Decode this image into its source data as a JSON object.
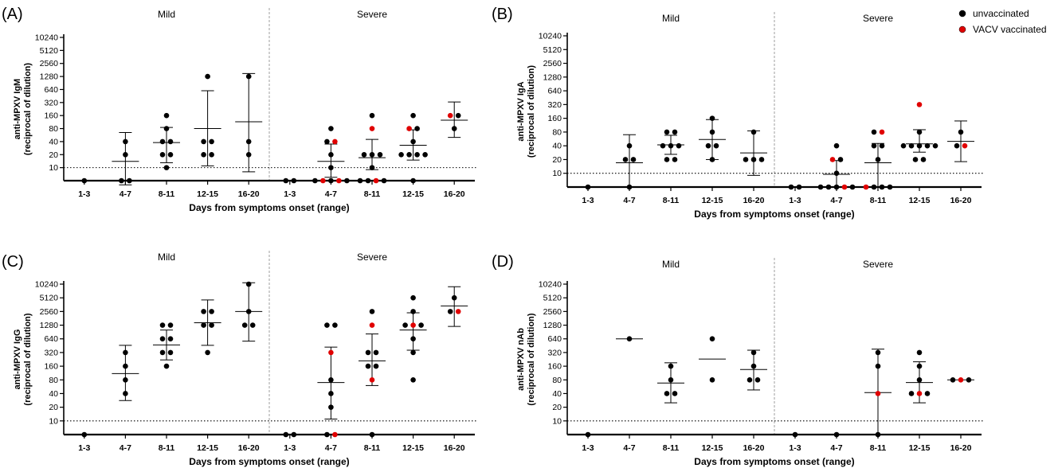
{
  "legend": {
    "items": [
      {
        "label": "unvaccinated",
        "color": "#000000"
      },
      {
        "label": "VACV vaccinated",
        "color": "#e00000"
      }
    ],
    "placement": "top-right"
  },
  "chart_data": [
    {
      "type": "scatter",
      "panel": "(A)",
      "groups": [
        "Mild",
        "Severe"
      ],
      "categories": [
        "1-3",
        "4-7",
        "8-11",
        "12-15",
        "16-20",
        "1-3",
        "4-7",
        "8-11",
        "12-15",
        "16-20"
      ],
      "xlabel": "Days from symptoms onset (range)",
      "ylabel": [
        "anti-MPXV IgM",
        "(reciprocal of dilution)"
      ],
      "yticks": [
        10,
        20,
        40,
        80,
        160,
        320,
        640,
        1280,
        2560,
        5120,
        10240
      ],
      "yscale": "log2",
      "ylim": [
        5,
        10240
      ],
      "threshold": 10,
      "points": [
        [
          [
            5,
            "u"
          ]
        ],
        [
          [
            5,
            "u"
          ],
          [
            5,
            "u"
          ],
          [
            20,
            "u"
          ],
          [
            40,
            "u"
          ]
        ],
        [
          [
            10,
            "u"
          ],
          [
            20,
            "u"
          ],
          [
            20,
            "u"
          ],
          [
            40,
            "u"
          ],
          [
            40,
            "u"
          ],
          [
            80,
            "u"
          ],
          [
            160,
            "u"
          ]
        ],
        [
          [
            20,
            "u"
          ],
          [
            20,
            "u"
          ],
          [
            40,
            "u"
          ],
          [
            40,
            "u"
          ],
          [
            1280,
            "u"
          ]
        ],
        [
          [
            20,
            "u"
          ],
          [
            40,
            "u"
          ],
          [
            1280,
            "u"
          ]
        ],
        [
          [
            5,
            "u"
          ],
          [
            5,
            "u"
          ]
        ],
        [
          [
            5,
            "u"
          ],
          [
            5,
            "v"
          ],
          [
            5,
            "u"
          ],
          [
            5,
            "v"
          ],
          [
            5,
            "u"
          ],
          [
            10,
            "u"
          ],
          [
            20,
            "u"
          ],
          [
            40,
            "u"
          ],
          [
            40,
            "v"
          ],
          [
            80,
            "u"
          ]
        ],
        [
          [
            5,
            "u"
          ],
          [
            5,
            "u"
          ],
          [
            5,
            "v"
          ],
          [
            5,
            "u"
          ],
          [
            10,
            "u"
          ],
          [
            20,
            "u"
          ],
          [
            20,
            "u"
          ],
          [
            20,
            "u"
          ],
          [
            80,
            "v"
          ],
          [
            160,
            "u"
          ]
        ],
        [
          [
            5,
            "u"
          ],
          [
            20,
            "u"
          ],
          [
            20,
            "u"
          ],
          [
            20,
            "u"
          ],
          [
            20,
            "u"
          ],
          [
            40,
            "u"
          ],
          [
            80,
            "v"
          ],
          [
            80,
            "u"
          ],
          [
            160,
            "u"
          ]
        ],
        [
          [
            80,
            "u"
          ],
          [
            160,
            "v"
          ],
          [
            160,
            "u"
          ]
        ]
      ],
      "center": [
        null,
        14,
        38,
        80,
        115,
        null,
        14,
        17,
        33,
        125
      ],
      "err_low": [
        null,
        4,
        13,
        11,
        8,
        null,
        6,
        9,
        15,
        50
      ],
      "err_high": [
        null,
        65,
        85,
        600,
        1500,
        null,
        35,
        45,
        75,
        330
      ]
    },
    {
      "type": "scatter",
      "panel": "(B)",
      "groups": [
        "Mild",
        "Severe"
      ],
      "categories": [
        "1-3",
        "4-7",
        "8-11",
        "12-15",
        "16-20",
        "1-3",
        "4-7",
        "8-11",
        "12-15",
        "16-20"
      ],
      "xlabel": "Days from symptoms onset (range)",
      "ylabel": [
        "anti-MPXV IgA",
        "(reciprocal of dilution)"
      ],
      "yticks": [
        10,
        20,
        40,
        80,
        160,
        320,
        640,
        1280,
        2560,
        5120,
        10240
      ],
      "yscale": "log2",
      "ylim": [
        5,
        10240
      ],
      "threshold": 10,
      "points": [
        [
          [
            5,
            "u"
          ]
        ],
        [
          [
            5,
            "u"
          ],
          [
            20,
            "u"
          ],
          [
            20,
            "u"
          ],
          [
            40,
            "u"
          ]
        ],
        [
          [
            20,
            "u"
          ],
          [
            20,
            "u"
          ],
          [
            40,
            "u"
          ],
          [
            40,
            "u"
          ],
          [
            40,
            "u"
          ],
          [
            80,
            "u"
          ],
          [
            80,
            "u"
          ]
        ],
        [
          [
            20,
            "u"
          ],
          [
            40,
            "u"
          ],
          [
            40,
            "u"
          ],
          [
            80,
            "u"
          ],
          [
            160,
            "u"
          ]
        ],
        [
          [
            20,
            "u"
          ],
          [
            20,
            "u"
          ],
          [
            20,
            "u"
          ],
          [
            80,
            "u"
          ]
        ],
        [
          [
            5,
            "u"
          ],
          [
            5,
            "u"
          ]
        ],
        [
          [
            5,
            "u"
          ],
          [
            5,
            "u"
          ],
          [
            5,
            "u"
          ],
          [
            5,
            "v"
          ],
          [
            5,
            "u"
          ],
          [
            10,
            "u"
          ],
          [
            20,
            "v"
          ],
          [
            20,
            "u"
          ],
          [
            40,
            "u"
          ]
        ],
        [
          [
            5,
            "v"
          ],
          [
            5,
            "u"
          ],
          [
            5,
            "u"
          ],
          [
            5,
            "u"
          ],
          [
            20,
            "u"
          ],
          [
            40,
            "u"
          ],
          [
            40,
            "u"
          ],
          [
            80,
            "u"
          ],
          [
            80,
            "v"
          ]
        ],
        [
          [
            20,
            "u"
          ],
          [
            20,
            "u"
          ],
          [
            40,
            "u"
          ],
          [
            40,
            "u"
          ],
          [
            40,
            "u"
          ],
          [
            40,
            "u"
          ],
          [
            40,
            "u"
          ],
          [
            80,
            "u"
          ],
          [
            320,
            "v"
          ]
        ],
        [
          [
            40,
            "u"
          ],
          [
            40,
            "v"
          ],
          [
            80,
            "u"
          ]
        ]
      ],
      "center": [
        null,
        17,
        42,
        55,
        28,
        null,
        9.5,
        17,
        44,
        50
      ],
      "err_low": [
        null,
        5,
        26,
        20,
        9,
        null,
        5,
        5,
        29,
        18
      ],
      "err_high": [
        null,
        70,
        68,
        150,
        85,
        null,
        19,
        45,
        90,
        140
      ]
    },
    {
      "type": "scatter",
      "panel": "(C)",
      "groups": [
        "Mild",
        "Severe"
      ],
      "categories": [
        "1-3",
        "4-7",
        "8-11",
        "12-15",
        "16-20",
        "1-3",
        "4-7",
        "8-11",
        "12-15",
        "16-20"
      ],
      "xlabel": "Days from symptoms onset (range)",
      "ylabel": [
        "anti-MPXV IgG",
        "(reciprocal of dilution)"
      ],
      "yticks": [
        10,
        20,
        40,
        80,
        160,
        320,
        640,
        1280,
        2560,
        5120,
        10240
      ],
      "yscale": "log2",
      "ylim": [
        5,
        10240
      ],
      "threshold": 10,
      "points": [
        [
          [
            5,
            "u"
          ]
        ],
        [
          [
            40,
            "u"
          ],
          [
            80,
            "u"
          ],
          [
            160,
            "u"
          ],
          [
            320,
            "u"
          ]
        ],
        [
          [
            160,
            "u"
          ],
          [
            320,
            "u"
          ],
          [
            320,
            "u"
          ],
          [
            640,
            "u"
          ],
          [
            640,
            "u"
          ],
          [
            1280,
            "u"
          ],
          [
            1280,
            "u"
          ]
        ],
        [
          [
            320,
            "u"
          ],
          [
            1280,
            "u"
          ],
          [
            1280,
            "u"
          ],
          [
            2560,
            "u"
          ],
          [
            2560,
            "u"
          ]
        ],
        [
          [
            1280,
            "u"
          ],
          [
            1280,
            "u"
          ],
          [
            2560,
            "u"
          ],
          [
            10240,
            "u"
          ]
        ],
        [
          [
            5,
            "u"
          ],
          [
            5,
            "u"
          ]
        ],
        [
          [
            5,
            "u"
          ],
          [
            5,
            "v"
          ],
          [
            20,
            "u"
          ],
          [
            40,
            "u"
          ],
          [
            80,
            "u"
          ],
          [
            320,
            "v"
          ],
          [
            1280,
            "u"
          ],
          [
            1280,
            "u"
          ]
        ],
        [
          [
            5,
            "u"
          ],
          [
            80,
            "v"
          ],
          [
            160,
            "u"
          ],
          [
            160,
            "u"
          ],
          [
            320,
            "u"
          ],
          [
            320,
            "u"
          ],
          [
            1280,
            "v"
          ],
          [
            2560,
            "u"
          ]
        ],
        [
          [
            80,
            "u"
          ],
          [
            320,
            "u"
          ],
          [
            640,
            "u"
          ],
          [
            1280,
            "u"
          ],
          [
            1280,
            "v"
          ],
          [
            1280,
            "u"
          ],
          [
            2560,
            "u"
          ],
          [
            5120,
            "u"
          ]
        ],
        [
          [
            2560,
            "u"
          ],
          [
            2560,
            "v"
          ],
          [
            5120,
            "u"
          ]
        ]
      ],
      "center": [
        null,
        110,
        470,
        1450,
        2560,
        null,
        70,
        210,
        1000,
        3400
      ],
      "err_low": [
        null,
        28,
        220,
        460,
        570,
        null,
        11,
        60,
        360,
        1200
      ],
      "err_high": [
        null,
        460,
        1000,
        4600,
        11000,
        null,
        420,
        820,
        2400,
        9000
      ]
    },
    {
      "type": "scatter",
      "panel": "(D)",
      "groups": [
        "Mild",
        "Severe"
      ],
      "categories": [
        "1-3",
        "4-7",
        "8-11",
        "12-15",
        "16-20",
        "1-3",
        "4-7",
        "8-11",
        "12-15",
        "16-20"
      ],
      "xlabel": "Days from symptoms onset (range)",
      "ylabel": [
        "anti-MPXV nAb",
        "(reciprocal of dilution)"
      ],
      "yticks": [
        10,
        20,
        40,
        80,
        160,
        320,
        640,
        1280,
        2560,
        5120,
        10240
      ],
      "yscale": "log2",
      "ylim": [
        5,
        10240
      ],
      "threshold": 10,
      "points": [
        [
          [
            5,
            "u"
          ]
        ],
        [
          [
            640,
            "u"
          ]
        ],
        [
          [
            40,
            "u"
          ],
          [
            40,
            "u"
          ],
          [
            80,
            "u"
          ],
          [
            160,
            "u"
          ]
        ],
        [
          [
            80,
            "u"
          ],
          [
            640,
            "u"
          ]
        ],
        [
          [
            80,
            "u"
          ],
          [
            80,
            "u"
          ],
          [
            160,
            "u"
          ],
          [
            320,
            "u"
          ]
        ],
        [
          [
            5,
            "u"
          ]
        ],
        [
          [
            5,
            "u"
          ]
        ],
        [
          [
            5,
            "u"
          ],
          [
            40,
            "v"
          ],
          [
            160,
            "u"
          ],
          [
            320,
            "u"
          ]
        ],
        [
          [
            40,
            "u"
          ],
          [
            40,
            "v"
          ],
          [
            40,
            "u"
          ],
          [
            80,
            "u"
          ],
          [
            160,
            "u"
          ],
          [
            320,
            "u"
          ]
        ],
        [
          [
            80,
            "u"
          ],
          [
            80,
            "v"
          ],
          [
            80,
            "u"
          ]
        ]
      ],
      "center": [
        null,
        640,
        68,
        230,
        135,
        null,
        null,
        42,
        70,
        80
      ],
      "err_low": [
        null,
        null,
        25,
        null,
        48,
        null,
        null,
        5,
        25,
        null
      ],
      "err_high": [
        null,
        null,
        190,
        null,
        360,
        null,
        null,
        380,
        200,
        null
      ]
    }
  ]
}
